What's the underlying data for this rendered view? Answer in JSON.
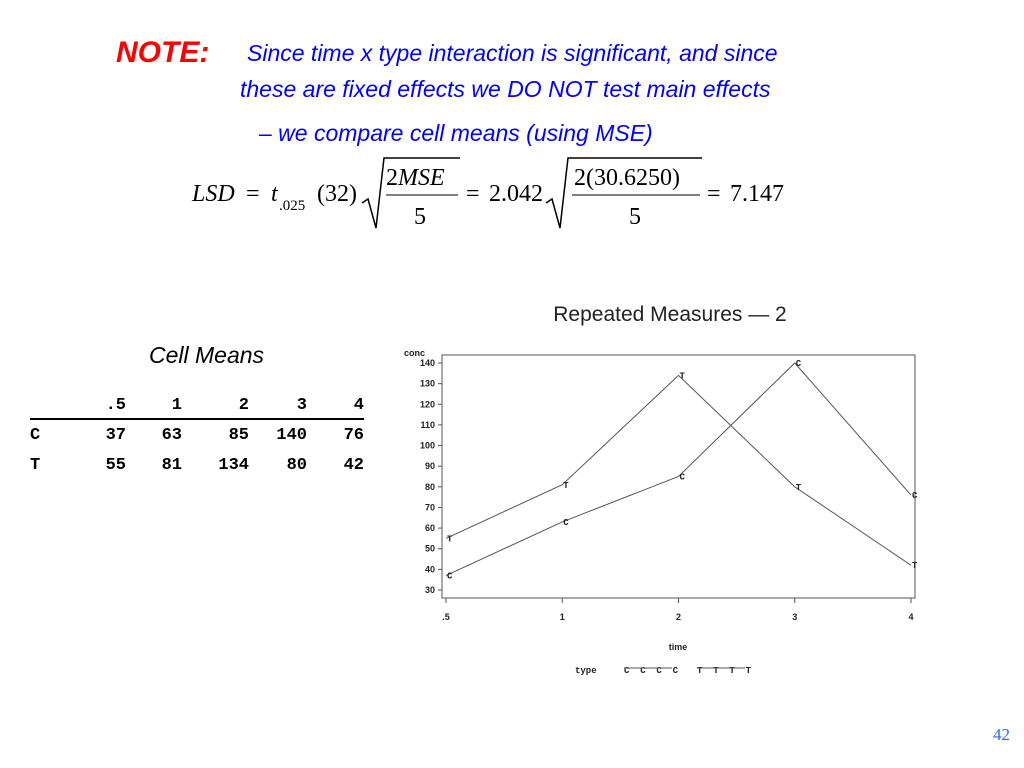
{
  "note": {
    "label": "NOTE:",
    "line1": "Since time x type interaction is significant, and since",
    "line2": "these are fixed effects we DO NOT test main effects",
    "line3": "– we compare cell means  (using MSE)"
  },
  "formula": {
    "lsd": "LSD",
    "equals": "=",
    "t": "t",
    "t_subscript": ".025",
    "df": "(32)",
    "num1_coef": "2",
    "num1_var": "MSE",
    "den1": "5",
    "t_value": "2.042",
    "num2": "2(30.6250)",
    "den2": "5",
    "result": "7.147"
  },
  "cell_means": {
    "title": "Cell Means",
    "columns": [
      ".5",
      "1",
      "2",
      "3",
      "4"
    ],
    "rows": [
      {
        "label": "C",
        "values": [
          "37",
          "63",
          "85",
          "140",
          "76"
        ]
      },
      {
        "label": "T",
        "values": [
          "55",
          "81",
          "134",
          "80",
          "42"
        ]
      }
    ]
  },
  "chart_data": {
    "type": "line",
    "title": "Repeated Measures  —  2",
    "ylabel": "conc",
    "xlabel": "time",
    "categories": [
      ".5",
      "1",
      "2",
      "3",
      "4"
    ],
    "yticks": [
      30,
      40,
      50,
      60,
      70,
      80,
      90,
      100,
      110,
      120,
      130,
      140
    ],
    "ylim": [
      30,
      140
    ],
    "series": [
      {
        "name": "C",
        "values": [
          37,
          63,
          85,
          140,
          76
        ]
      },
      {
        "name": "T",
        "values": [
          55,
          81,
          134,
          80,
          42
        ]
      }
    ],
    "legend": {
      "label": "type",
      "entries": [
        "C  C  C  C",
        "T  T  T  T"
      ],
      "placement": "bottom"
    },
    "line_color": "#555555"
  },
  "page_number": "42"
}
